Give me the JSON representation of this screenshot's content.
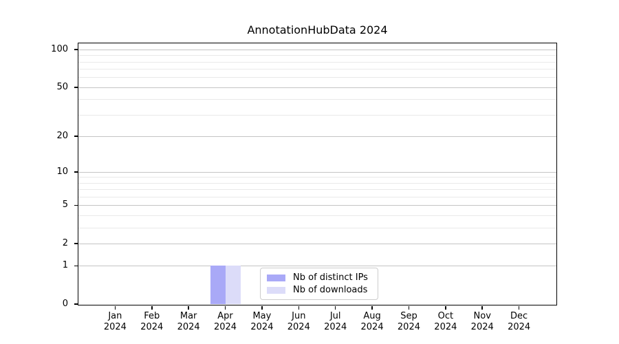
{
  "title": "AnnotationHubData 2024",
  "colors": {
    "bar_distinct_ips": "#a9a9f7",
    "bar_downloads": "#dcdcf9",
    "grid_major": "#c4c4c4",
    "grid_minor": "#e9e9e9",
    "axis": "#000000",
    "legend_border": "#cccccc"
  },
  "chart_data": {
    "type": "bar",
    "title": "AnnotationHubData 2024",
    "xlabel": "",
    "ylabel": "",
    "categories": [
      "Jan",
      "Feb",
      "Mar",
      "Apr",
      "May",
      "Jun",
      "Jul",
      "Aug",
      "Sep",
      "Oct",
      "Nov",
      "Dec"
    ],
    "year_label": "2024",
    "series": [
      {
        "name": "Nb of distinct IPs",
        "color": "#a9a9f7",
        "values": [
          0,
          0,
          0,
          1,
          0,
          0,
          0,
          0,
          0,
          0,
          0,
          0
        ]
      },
      {
        "name": "Nb of downloads",
        "color": "#dcdcf9",
        "values": [
          0,
          0,
          0,
          1,
          0,
          0,
          0,
          0,
          0,
          0,
          0,
          0
        ]
      }
    ],
    "yscale": "log10(1+y)",
    "yticks": [
      0,
      1,
      2,
      5,
      10,
      20,
      50,
      100
    ],
    "minor_yticks": [
      3,
      4,
      6,
      7,
      8,
      9,
      30,
      40,
      60,
      70,
      80,
      90
    ],
    "ylim": [
      0,
      112
    ],
    "grid": "horizontal",
    "legend_position": "inside lower-center"
  }
}
